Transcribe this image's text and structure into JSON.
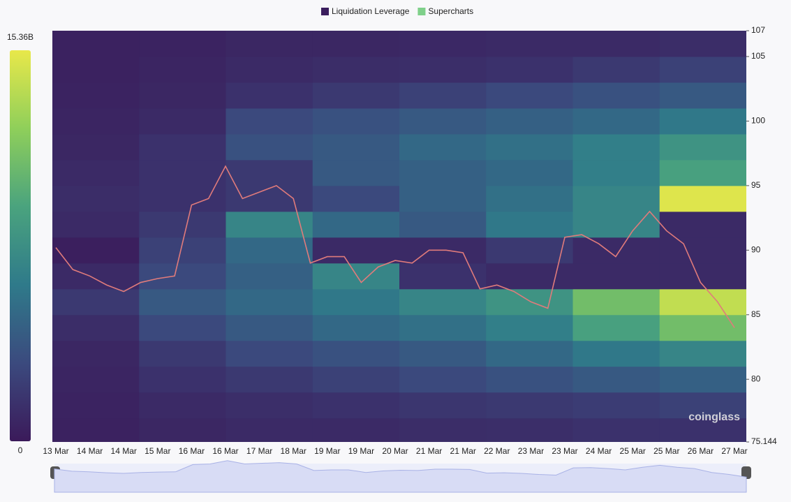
{
  "chart_data": {
    "type": "heatmap",
    "legend": [
      {
        "name": "Liquidation Leverage",
        "color": "#3b1e5e"
      },
      {
        "name": "Supercharts",
        "color": "#7fd08a"
      }
    ],
    "categories": [
      "13 Mar",
      null,
      "14 Mar",
      null,
      "14 Mar",
      null,
      "15 Mar",
      null,
      "16 Mar",
      null,
      "16 Mar",
      null,
      "17 Mar",
      null,
      "18 Mar",
      null,
      "19 Mar",
      null,
      "19 Mar",
      null,
      "20 Mar",
      null,
      "21 Mar",
      null,
      "21 Mar",
      null,
      "22 Mar",
      null,
      "23 Mar",
      null,
      "23 Mar",
      null,
      "24 Mar",
      null,
      "25 Mar",
      null,
      "25 Mar",
      null,
      "26 Mar",
      null,
      "27 Mar"
    ],
    "price": {
      "color": "#e07b7b",
      "values": [
        90.2,
        88.5,
        88,
        87.3,
        86.8,
        87.5,
        87.8,
        88,
        93.5,
        94,
        96.5,
        94,
        94.5,
        95,
        94,
        89,
        89.5,
        89.5,
        87.5,
        88.7,
        89.2,
        89,
        90,
        90,
        89.8,
        87,
        87.3,
        86.8,
        86,
        85.5,
        91,
        91.2,
        90.5,
        89.5,
        91.5,
        93,
        91.5,
        90.5,
        87.5,
        86,
        84
      ]
    },
    "levels": [
      76,
      78,
      80,
      82,
      84,
      86,
      88,
      90,
      92,
      94,
      96,
      98,
      100,
      102,
      104,
      106
    ],
    "z": [
      [
        500000000.0,
        800000000.0,
        1000000000.0,
        1000000000.0,
        1200000000.0,
        1300000000.0,
        1500000000.0,
        1500000000.0
      ],
      [
        600000000.0,
        1000000000.0,
        1300000000.0,
        1500000000.0,
        1800000000.0,
        2000000000.0,
        2200000000.0,
        2500000000.0
      ],
      [
        700000000.0,
        1500000000.0,
        2000000000.0,
        2500000000.0,
        3000000000.0,
        3500000000.0,
        4000000000.0,
        4500000000.0
      ],
      [
        800000000.0,
        2000000000.0,
        3000000000.0,
        3500000000.0,
        4000000000.0,
        5000000000.0,
        6000000000.0,
        7000000000.0
      ],
      [
        1200000000.0,
        3000000000.0,
        4000000000.0,
        5000000000.0,
        5500000000.0,
        6500000000.0,
        9000000000.0,
        11000000000.0
      ],
      [
        2000000000.0,
        4000000000.0,
        5000000000.0,
        6000000000.0,
        7000000000.0,
        8000000000.0,
        11000000000.0,
        14000000000.0
      ],
      [
        1000000000.0,
        3000000000.0,
        4500000000.0,
        7000000000.0,
        1500000000.0,
        1000000000.0,
        1000000000.0,
        1000000000.0
      ],
      [
        300000000.0,
        2500000000.0,
        5000000000.0,
        1000000000.0,
        1000000000.0,
        2000000000.0,
        1000000000.0,
        1000000000.0
      ],
      [
        1000000000.0,
        2000000000.0,
        7000000000.0,
        5000000000.0,
        4000000000.0,
        6000000000.0,
        7000000000.0,
        1000000000.0
      ],
      [
        1200000000.0,
        1500000000.0,
        2000000000.0,
        3000000000.0,
        4500000000.0,
        5500000000.0,
        7000000000.0,
        15000000000.0
      ],
      [
        1000000000.0,
        1500000000.0,
        2000000000.0,
        4000000000.0,
        4500000000.0,
        5000000000.0,
        6500000000.0,
        9000000000.0
      ],
      [
        800000000.0,
        1500000000.0,
        3500000000.0,
        4000000000.0,
        5000000000.0,
        5500000000.0,
        6500000000.0,
        8000000000.0
      ],
      [
        700000000.0,
        1000000000.0,
        3000000000.0,
        3500000000.0,
        4000000000.0,
        4500000000.0,
        5000000000.0,
        6000000000.0
      ],
      [
        600000000.0,
        800000000.0,
        1500000000.0,
        2000000000.0,
        2500000000.0,
        3000000000.0,
        3500000000.0,
        4000000000.0
      ],
      [
        500000000.0,
        700000000.0,
        1000000000.0,
        1200000000.0,
        1300000000.0,
        1500000000.0,
        2000000000.0,
        2500000000.0
      ],
      [
        500000000.0,
        600000000.0,
        800000000.0,
        800000000.0,
        900000000.0,
        1000000000.0,
        1000000000.0,
        1200000000.0
      ]
    ],
    "zlim": [
      0,
      15360000000
    ],
    "zticks": [
      0,
      {
        "value": 15360000000,
        "label": "15.36B"
      }
    ],
    "colorscale": [
      "#3b1a5a",
      "#3b4a7e",
      "#2f7a8a",
      "#4aa37e",
      "#8fcf5a",
      "#e8e84a"
    ],
    "ylim": [
      75.144,
      107
    ],
    "yticks": [
      75.144,
      80,
      85,
      90,
      95,
      100,
      105,
      107
    ],
    "watermark": "coinglass"
  }
}
